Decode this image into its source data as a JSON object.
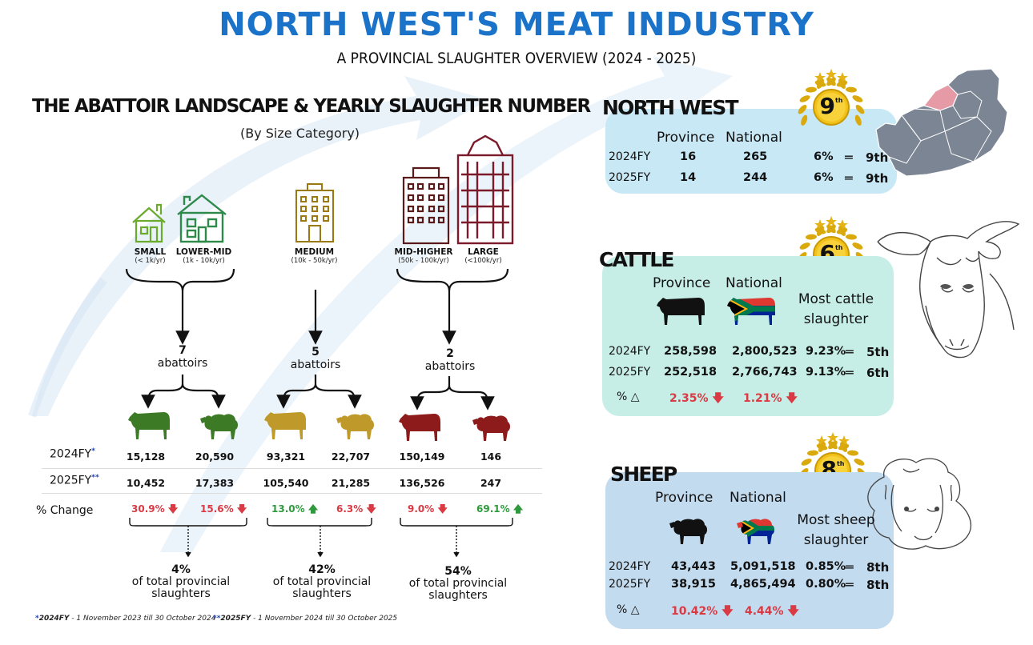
{
  "title": "NORTH WEST'S MEAT INDUSTRY",
  "subtitle": "A PROVINCIAL SLAUGHTER OVERVIEW (2024 - 2025)",
  "landscape": {
    "title": "THE ABATTOIR LANDSCAPE & YEARLY SLAUGHTER NUMBER",
    "subtitle": "(By Size Category)",
    "categories": [
      {
        "label": "SMALL",
        "range": "(< 1k/yr)"
      },
      {
        "label": "LOWER-MID",
        "range": "(1k - 10k/yr)"
      },
      {
        "label": "MEDIUM",
        "range": "(10k - 50k/yr)"
      },
      {
        "label": "MID-HIGHER",
        "range": "(50k - 100k/yr)"
      },
      {
        "label": "LARGE",
        "range": "(<100k/yr)"
      }
    ],
    "groups": [
      {
        "count": "7",
        "unit": "abattoirs",
        "share": "4%",
        "share_text": "of total provincial slaughters",
        "color": "#3d7a26"
      },
      {
        "count": "5",
        "unit": "abattoirs",
        "share": "42%",
        "share_text": "of total provincial slaughters",
        "color": "#bf9a2a"
      },
      {
        "count": "2",
        "unit": "abattoirs",
        "share": "54%",
        "share_text": "of total provincial slaughters",
        "color": "#8e1b1b"
      }
    ],
    "row_labels": {
      "fy2024": "2024FY",
      "fy2025": "2025FY",
      "change": "% Change"
    },
    "values_2024": [
      "15,128",
      "20,590",
      "93,321",
      "22,707",
      "150,149",
      "146"
    ],
    "values_2025": [
      "10,452",
      "17,383",
      "105,540",
      "21,285",
      "136,526",
      "247"
    ],
    "changes": [
      {
        "value": "30.9%",
        "dir": "down"
      },
      {
        "value": "15.6%",
        "dir": "down"
      },
      {
        "value": "13.0%",
        "dir": "up"
      },
      {
        "value": "6.3%",
        "dir": "down"
      },
      {
        "value": "9.0%",
        "dir": "down"
      },
      {
        "value": "69.1%",
        "dir": "up"
      }
    ],
    "footnote_2024_label": "2024FY",
    "footnote_2024_text": " - 1 November 2023 till 30 October 2024",
    "footnote_2025_label": "2025FY",
    "footnote_2025_text": " - 1 November 2024 till 30 October 2025"
  },
  "north_west": {
    "title": "NORTH WEST",
    "rank": "9",
    "rank_suffix": "th",
    "col_province": "Province",
    "col_national": "National",
    "rows": [
      {
        "fy": "2024FY",
        "province": "16",
        "national": "265",
        "pct": "6%",
        "rank": "9th"
      },
      {
        "fy": "2025FY",
        "province": "14",
        "national": "244",
        "pct": "6%",
        "rank": "9th"
      }
    ]
  },
  "cattle": {
    "title": "CATTLE",
    "rank": "6",
    "rank_suffix": "th",
    "col_province": "Province",
    "col_national": "National",
    "note": "Most cattle slaughter",
    "rows": [
      {
        "fy": "2024FY",
        "province": "258,598",
        "national": "2,800,523",
        "pct": "9.23%",
        "rank": "5th"
      },
      {
        "fy": "2025FY",
        "province": "252,518",
        "national": "2,766,743",
        "pct": "9.13%",
        "rank": "6th"
      }
    ],
    "change_label": "% △",
    "change_province": "2.35%",
    "change_national": "1.21%"
  },
  "sheep": {
    "title": "SHEEP",
    "rank": "8",
    "rank_suffix": "th",
    "col_province": "Province",
    "col_national": "National",
    "note": "Most sheep slaughter",
    "rows": [
      {
        "fy": "2024FY",
        "province": "43,443",
        "national": "5,091,518",
        "pct": "0.85%",
        "rank": "8th"
      },
      {
        "fy": "2025FY",
        "province": "38,915",
        "national": "4,865,494",
        "pct": "0.80%",
        "rank": "8th"
      }
    ],
    "change_label": "% △",
    "change_province": "10.42%",
    "change_national": "4.44%"
  },
  "colors": {
    "title_blue": "#1a73c9",
    "down_red": "#d93a43",
    "up_green": "#2e9a3c",
    "nw_panel": "#c8e8f5",
    "cattle_panel": "#c6eee6",
    "sheep_panel": "#c3dbef",
    "gold": "#e5b315"
  }
}
